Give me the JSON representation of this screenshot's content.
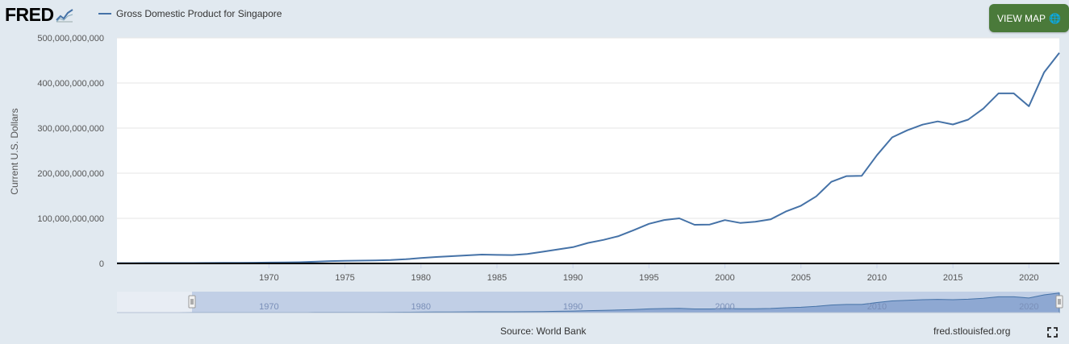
{
  "header": {
    "logo_text": "FRED",
    "legend_label": "Gross Domestic Product for Singapore",
    "view_map_label": "VIEW MAP"
  },
  "footer": {
    "source": "Source: World Bank",
    "site": "fred.stlouisfed.org"
  },
  "colors": {
    "series": "#4572a7",
    "background": "#e1e9f0",
    "button": "#4a7a3a"
  },
  "chart_data": {
    "type": "line",
    "title": "",
    "xlabel": "",
    "ylabel": "Current U.S. Dollars",
    "ylim": [
      0,
      500000000000
    ],
    "xlim": [
      1960,
      2022
    ],
    "y_ticks": [
      0,
      100000000000,
      200000000000,
      300000000000,
      400000000000,
      500000000000
    ],
    "y_tick_labels": [
      "0",
      "100,000,000,000",
      "200,000,000,000",
      "300,000,000,000",
      "400,000,000,000",
      "500,000,000,000"
    ],
    "x_ticks": [
      1970,
      1975,
      1980,
      1985,
      1990,
      1995,
      2000,
      2005,
      2010,
      2015,
      2020
    ],
    "x_tick_labels": [
      "1970",
      "1975",
      "1980",
      "1985",
      "1990",
      "1995",
      "2000",
      "2005",
      "2010",
      "2015",
      "2020"
    ],
    "navigator_labels": [
      "1970",
      "1980",
      "1990",
      "2000",
      "2010",
      "2020"
    ],
    "grid": true,
    "legend": "top-left",
    "series": [
      {
        "name": "Gross Domestic Product for Singapore",
        "x": [
          1960,
          1961,
          1962,
          1963,
          1964,
          1965,
          1966,
          1967,
          1968,
          1969,
          1970,
          1971,
          1972,
          1973,
          1974,
          1975,
          1976,
          1977,
          1978,
          1979,
          1980,
          1981,
          1982,
          1983,
          1984,
          1985,
          1986,
          1987,
          1988,
          1989,
          1990,
          1991,
          1992,
          1993,
          1994,
          1995,
          1996,
          1997,
          1998,
          1999,
          2000,
          2001,
          2002,
          2003,
          2004,
          2005,
          2006,
          2007,
          2008,
          2009,
          2010,
          2011,
          2012,
          2013,
          2014,
          2015,
          2016,
          2017,
          2018,
          2019,
          2020,
          2021,
          2022
        ],
        "values": [
          700000000,
          760000000,
          830000000,
          920000000,
          890000000,
          970000000,
          1100000000,
          1240000000,
          1420000000,
          1680000000,
          1920000000,
          2260000000,
          2720000000,
          3690000000,
          5220000000,
          5720000000,
          6310000000,
          6620000000,
          7530000000,
          9300000000,
          11900000000,
          14200000000,
          16100000000,
          17800000000,
          19700000000,
          19000000000,
          18500000000,
          20900000000,
          25900000000,
          31000000000,
          36100000000,
          45500000000,
          52100000000,
          60600000000,
          73700000000,
          87900000000,
          96300000000,
          100000000000,
          85700000000,
          86300000000,
          96100000000,
          89800000000,
          92500000000,
          97600000000,
          115000000000,
          127800000000,
          148600000000,
          180900000000,
          193600000000,
          194200000000,
          239800000000,
          279400000000,
          295100000000,
          307600000000,
          314900000000,
          308000000000,
          318800000000,
          343200000000,
          376900000000,
          376900000000,
          348400000000,
          423800000000,
          466800000000
        ]
      }
    ]
  }
}
